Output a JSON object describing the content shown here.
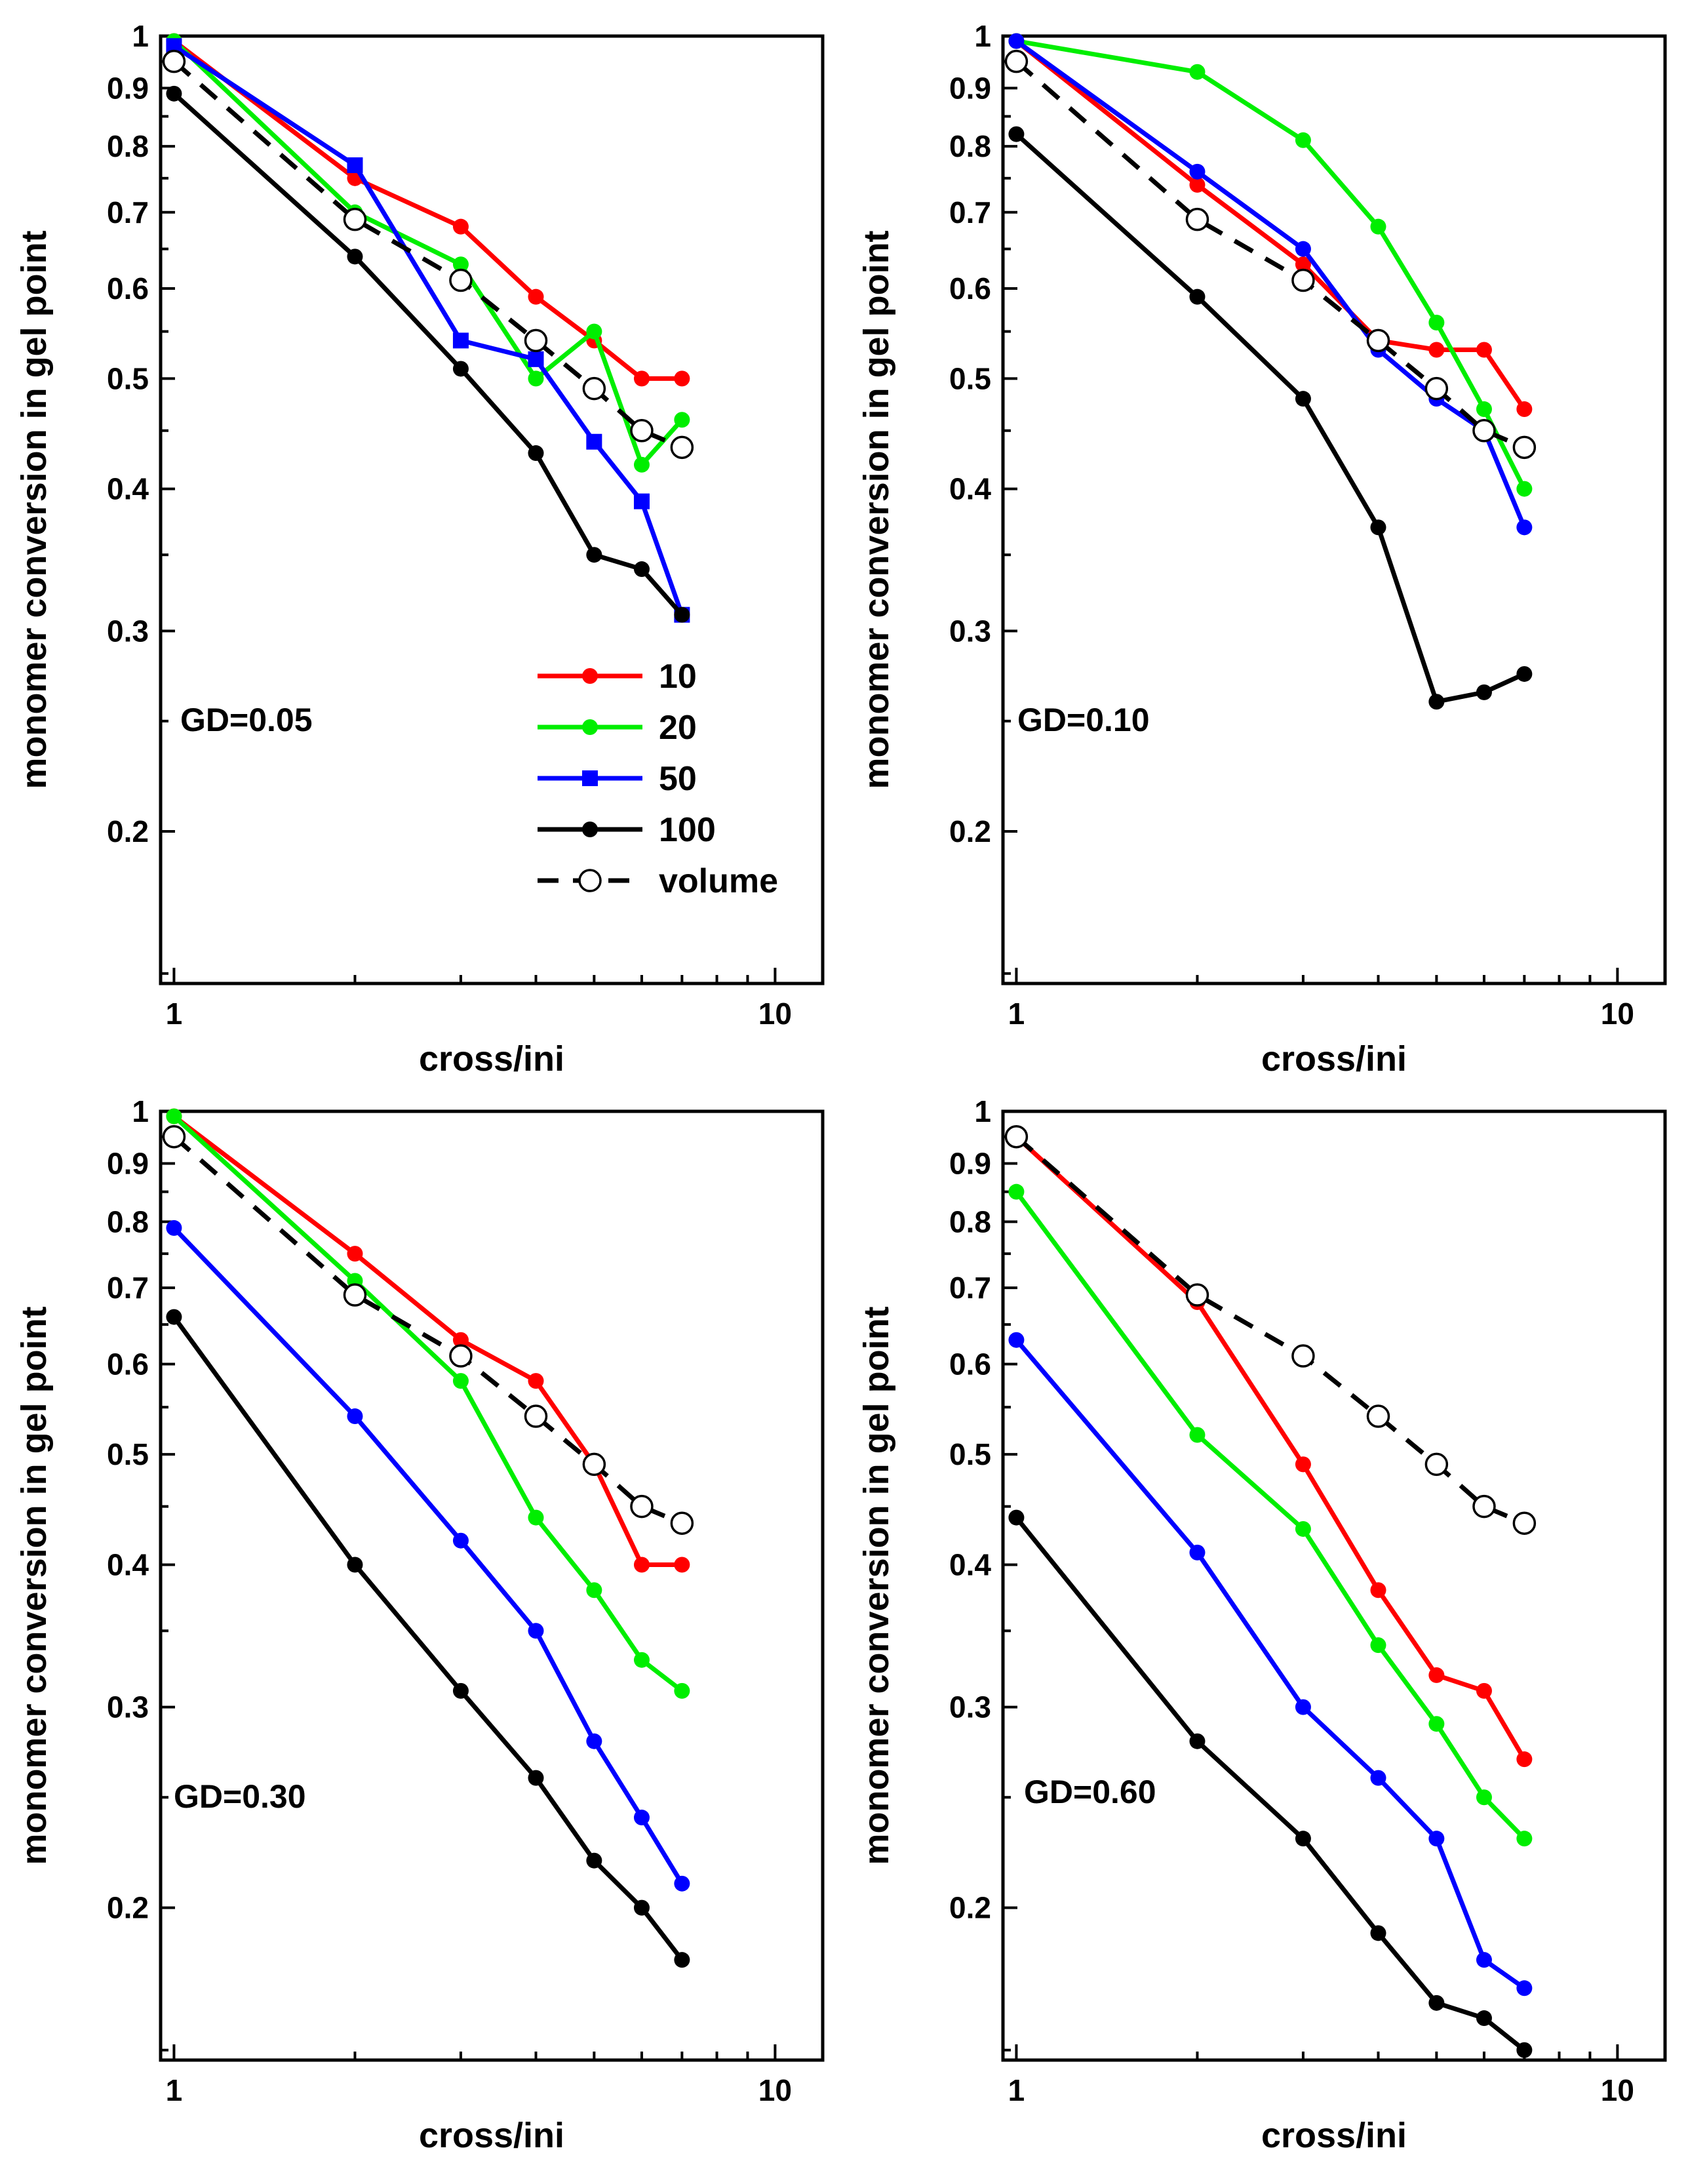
{
  "figure": {
    "shared": {
      "xlabel": "cross/ini",
      "ylabel": "monomer conversion in gel point",
      "xscale": "log",
      "yscale": "log",
      "xlim": [
        0.95,
        12
      ],
      "ylim": [
        0.147,
        1.0
      ],
      "x": [
        1,
        2,
        3,
        4,
        5,
        6,
        7
      ],
      "x_tick_labels": [
        "1",
        "10"
      ],
      "y_tick_labels": [
        "1",
        "0.9",
        "0.8",
        "0.7",
        "0.6",
        "0.5",
        "0.4",
        "0.3",
        "0.2"
      ]
    },
    "colors": {
      "10": "#ff0000",
      "20": "#00ee00",
      "50": "#0000ff",
      "100": "#000000",
      "volume": "#000000"
    },
    "legend": {
      "placement": "lower-right of first panel",
      "entries": [
        {
          "label": "10",
          "marker": "circle"
        },
        {
          "label": "20",
          "marker": "circle"
        },
        {
          "label": "50",
          "marker": "square"
        },
        {
          "label": "100",
          "marker": "circle"
        },
        {
          "label": "volume",
          "marker": "open-circle-dashed"
        }
      ]
    }
  },
  "chart_data": [
    {
      "type": "line",
      "annotation": "GD=0.05",
      "x": [
        1,
        2,
        3,
        4,
        5,
        6,
        7
      ],
      "series": [
        {
          "name": "10",
          "marker": "circle",
          "values": [
            0.99,
            0.75,
            0.68,
            0.59,
            0.54,
            0.5,
            0.5
          ]
        },
        {
          "name": "20",
          "marker": "circle",
          "values": [
            0.99,
            0.7,
            0.63,
            0.5,
            0.55,
            0.42,
            0.46
          ]
        },
        {
          "name": "50",
          "marker": "square",
          "values": [
            0.98,
            0.77,
            0.54,
            0.52,
            0.44,
            0.39,
            0.31
          ]
        },
        {
          "name": "100",
          "marker": "circle",
          "values": [
            0.89,
            0.64,
            0.51,
            0.43,
            0.35,
            0.34,
            0.31
          ]
        },
        {
          "name": "volume",
          "marker": "open-circle",
          "dashed": true,
          "values": [
            0.95,
            0.69,
            0.61,
            0.54,
            0.49,
            0.45,
            0.435
          ]
        }
      ]
    },
    {
      "type": "line",
      "annotation": "GD=0.10",
      "x": [
        1,
        2,
        3,
        4,
        5,
        6,
        7
      ],
      "series": [
        {
          "name": "10",
          "marker": "circle",
          "values": [
            0.99,
            0.74,
            0.63,
            0.54,
            0.53,
            0.53,
            0.47
          ]
        },
        {
          "name": "20",
          "marker": "circle",
          "values": [
            0.99,
            0.93,
            0.81,
            0.68,
            0.56,
            0.47,
            0.4
          ]
        },
        {
          "name": "50",
          "marker": "circle",
          "values": [
            0.99,
            0.76,
            0.65,
            0.53,
            0.48,
            0.45,
            0.37
          ]
        },
        {
          "name": "100",
          "marker": "circle",
          "values": [
            0.82,
            0.59,
            0.48,
            0.37,
            0.26,
            0.265,
            0.275
          ]
        },
        {
          "name": "volume",
          "marker": "open-circle",
          "dashed": true,
          "values": [
            0.95,
            0.69,
            0.61,
            0.54,
            0.49,
            0.45,
            0.435
          ]
        }
      ]
    },
    {
      "type": "line",
      "annotation": "GD=0.30",
      "x": [
        1,
        2,
        3,
        4,
        5,
        6,
        7
      ],
      "series": [
        {
          "name": "10",
          "marker": "circle",
          "values": [
            0.99,
            0.75,
            0.63,
            0.58,
            0.49,
            0.4,
            0.4
          ]
        },
        {
          "name": "20",
          "marker": "circle",
          "values": [
            0.99,
            0.71,
            0.58,
            0.44,
            0.38,
            0.33,
            0.31
          ]
        },
        {
          "name": "50",
          "marker": "circle",
          "values": [
            0.79,
            0.54,
            0.42,
            0.35,
            0.28,
            0.24,
            0.21
          ]
        },
        {
          "name": "100",
          "marker": "circle",
          "values": [
            0.66,
            0.4,
            0.31,
            0.26,
            0.22,
            0.2,
            0.18
          ]
        },
        {
          "name": "volume",
          "marker": "open-circle",
          "dashed": true,
          "values": [
            0.95,
            0.69,
            0.61,
            0.54,
            0.49,
            0.45,
            0.435
          ]
        }
      ]
    },
    {
      "type": "line",
      "annotation": "GD=0.60",
      "x": [
        1,
        2,
        3,
        4,
        5,
        6,
        7
      ],
      "series": [
        {
          "name": "10",
          "marker": "circle",
          "values": [
            0.95,
            0.68,
            0.49,
            0.38,
            0.32,
            0.31,
            0.27
          ]
        },
        {
          "name": "20",
          "marker": "circle",
          "values": [
            0.85,
            0.52,
            0.43,
            0.34,
            0.29,
            0.25,
            0.23
          ]
        },
        {
          "name": "50",
          "marker": "circle",
          "values": [
            0.63,
            0.41,
            0.3,
            0.26,
            0.23,
            0.18,
            0.17
          ]
        },
        {
          "name": "100",
          "marker": "circle",
          "values": [
            0.44,
            0.28,
            0.23,
            0.19,
            0.165,
            0.16,
            0.15
          ]
        },
        {
          "name": "volume",
          "marker": "open-circle",
          "dashed": true,
          "values": [
            0.95,
            0.69,
            0.61,
            0.54,
            0.49,
            0.45,
            0.435
          ]
        }
      ]
    }
  ]
}
